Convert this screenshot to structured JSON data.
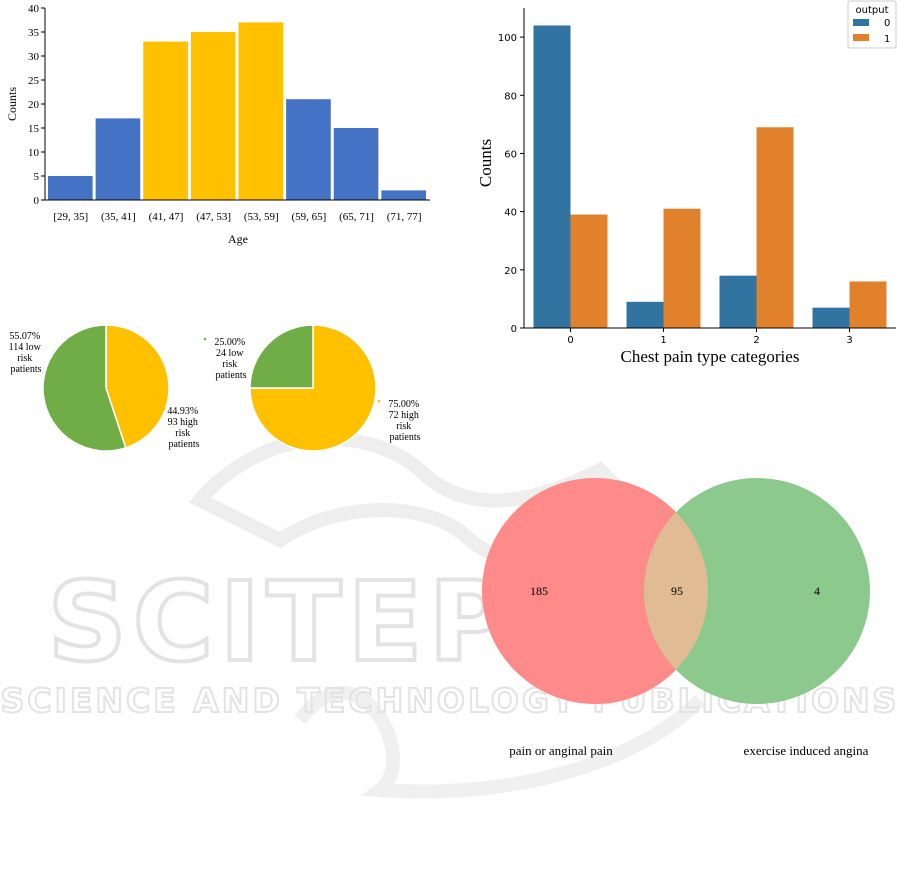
{
  "watermark": {
    "line1": "SCITEPRESS",
    "line2": "SCIENCE AND TECHNOLOGY PUBLICATIONS"
  },
  "chart_data": [
    {
      "type": "bar",
      "categories": [
        "[29, 35]",
        "(35, 41]",
        "(41, 47]",
        "(47, 53]",
        "(53, 59]",
        "(59, 65]",
        "(65, 71]",
        "(71, 77]"
      ],
      "values": [
        5,
        17,
        33,
        35,
        37,
        21,
        15,
        2
      ],
      "bar_colors": [
        "#4472c4",
        "#4472c4",
        "#ffc000",
        "#ffc000",
        "#ffc000",
        "#4472c4",
        "#4472c4",
        "#4472c4"
      ],
      "xlabel": "Age",
      "ylabel": "Counts",
      "ylim": [
        0,
        40
      ],
      "yticks": [
        0,
        5,
        10,
        15,
        20,
        25,
        30,
        35,
        40
      ]
    },
    {
      "type": "bar",
      "categories": [
        "0",
        "1",
        "2",
        "3"
      ],
      "series": [
        {
          "name": "0",
          "values": [
            104,
            9,
            18,
            7
          ],
          "color": "#3274a1"
        },
        {
          "name": "1",
          "values": [
            39,
            41,
            69,
            16
          ],
          "color": "#e1812c"
        }
      ],
      "legend_title": "output",
      "legend_position": "top-right",
      "xlabel": "Chest pain type categories",
      "ylabel": "Counts",
      "ylim": [
        0,
        110
      ],
      "yticks": [
        0,
        20,
        40,
        60,
        80,
        100
      ]
    },
    {
      "type": "pie",
      "slices": [
        {
          "label": "44.93%\n93 high\nrisk\npatients",
          "value": 44.93,
          "color": "#ffc000"
        },
        {
          "label": "55.07%\n114 low\nrisk\npatients",
          "value": 55.07,
          "color": "#70ad47"
        }
      ]
    },
    {
      "type": "pie",
      "slices": [
        {
          "label": "75.00%\n72 high\nrisk\npatients",
          "value": 75.0,
          "color": "#ffc000"
        },
        {
          "label": "25.00%\n24 low\nrisk\npatients",
          "value": 25.0,
          "color": "#70ad47"
        }
      ]
    },
    {
      "type": "venn",
      "sets": [
        {
          "name": "pain or anginal pain",
          "only": 185,
          "color": "#ff8a8a"
        },
        {
          "name": "exercise induced angina",
          "only": 4,
          "color": "#8cc98c"
        }
      ],
      "intersection": 95,
      "intersection_color": "#e0bb94"
    }
  ]
}
